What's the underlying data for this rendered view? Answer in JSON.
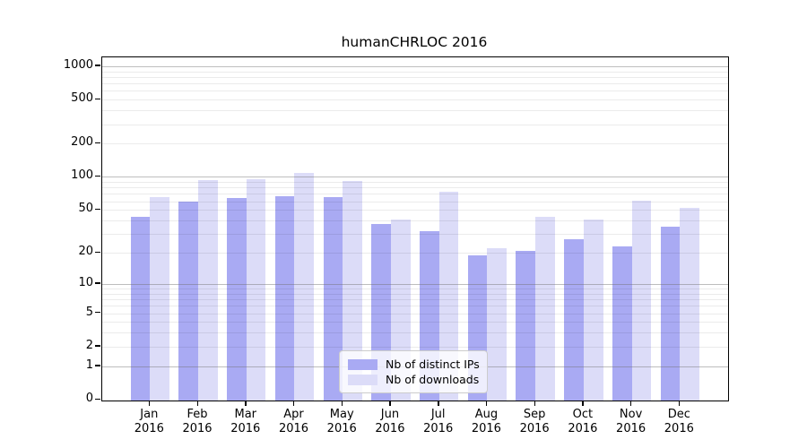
{
  "title": "humanCHRLOC 2016",
  "chart_data": {
    "type": "bar",
    "title": "humanCHRLOC 2016",
    "categories": [
      "Jan",
      "Feb",
      "Mar",
      "Apr",
      "May",
      "Jun",
      "Jul",
      "Aug",
      "Sep",
      "Oct",
      "Nov",
      "Dec"
    ],
    "category_year": "2016",
    "series": [
      {
        "name": "Nb of distinct IPs",
        "color": "#a9aaf3",
        "values": [
          43,
          60,
          64,
          67,
          66,
          37,
          32,
          19,
          21,
          27,
          23,
          35
        ]
      },
      {
        "name": "Nb of downloads",
        "color": "#dcdcf8",
        "values": [
          66,
          93,
          95,
          108,
          91,
          41,
          73,
          22,
          43,
          41,
          61,
          52
        ]
      }
    ],
    "y_scale": "log10(value+1)",
    "y_ticks": [
      0,
      1,
      2,
      5,
      10,
      20,
      50,
      100,
      200,
      500,
      1000
    ],
    "major_gridlines": [
      1,
      10,
      100,
      1000
    ],
    "minor_gridlines": [
      2,
      3,
      4,
      5,
      6,
      7,
      8,
      9,
      20,
      30,
      40,
      50,
      60,
      70,
      80,
      90,
      200,
      300,
      400,
      500,
      600,
      700,
      800,
      900
    ],
    "xlabel": "",
    "ylabel": "",
    "grid": true,
    "legend_position": "lower-center",
    "legend_entries": [
      "Nb of distinct IPs",
      "Nb of downloads"
    ]
  }
}
